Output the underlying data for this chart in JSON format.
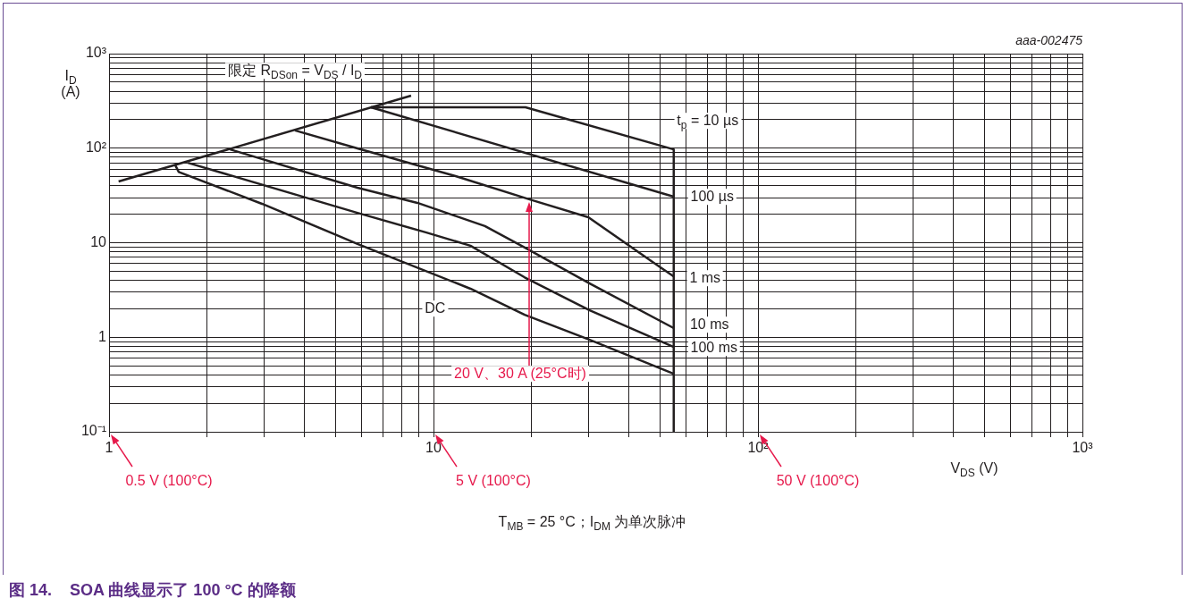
{
  "chart_data": {
    "type": "line",
    "title": "图 14.    SOA 曲线显示了 100 °C 的降额",
    "xlabel": "V$_{DS}$ (V)",
    "ylabel": "I$_{D}$ (A)",
    "annotations": [
      "aaa-002475",
      "限定 R$_{DSon}$ = V$_{DS}$ / I$_{D}$",
      "20 V、30 A (25°C时)",
      "0.5 V (100°C)",
      "5 V (100°C)",
      "50 V (100°C)",
      "T$_{MB}$ = 25 °C；I$_{DM}$ 为单次脉冲"
    ],
    "series": [
      {
        "color": "#231f20",
        "x": [
          1.07,
          8.53
        ],
        "values": [
          44.4,
          359
        ]
      },
      {
        "name": "t$_{p}$ = 10 µs",
        "color": "#231f20",
        "x": [
          6.41,
          19.2,
          55
        ],
        "values": [
          271,
          271,
          97
        ]
      },
      {
        "name": "100 µs",
        "color": "#231f20",
        "x": [
          6.41,
          55
        ],
        "values": [
          271,
          30.7
        ]
      },
      {
        "name": "1 ms",
        "color": "#231f20",
        "x": [
          3.74,
          5.83,
          11.7,
          19.8,
          30,
          48.2,
          55
        ],
        "values": [
          154,
          99.5,
          50.6,
          28.7,
          18.6,
          6.0,
          4.4
        ]
      },
      {
        "name": "10 ms",
        "color": "#231f20",
        "x": [
          2.36,
          5.83,
          8.92,
          14.4,
          19.1,
          30.3,
          55
        ],
        "values": [
          97,
          38.2,
          26.4,
          15.0,
          8.9,
          3.7,
          1.25
        ]
      },
      {
        "name": "100 ms",
        "color": "#231f20",
        "x": [
          1.75,
          5.83,
          9.51,
          13.0,
          19.1,
          30.3,
          55
        ],
        "values": [
          70,
          20.7,
          12.8,
          9.3,
          4.3,
          1.93,
          0.79
        ]
      },
      {
        "name": "DC",
        "color": "#231f20",
        "x": [
          1.6,
          1.64,
          2.96,
          5.04,
          5.83,
          13.0,
          19.1,
          30.3,
          55
        ],
        "values": [
          66,
          56,
          25.8,
          12.0,
          9.7,
          3.26,
          1.73,
          0.94,
          0.41
        ]
      },
      {
        "color": "#231f20",
        "x": [
          55,
          55
        ],
        "values": [
          97,
          0.1
        ]
      }
    ],
    "log": "xy",
    "xlim": [
      1,
      1000
    ],
    "ylim": [
      0.1,
      1000
    ],
    "xticks": [
      1,
      {
        "value": 2,
        "label": null
      },
      {
        "value": 3,
        "label": null
      },
      {
        "value": 4,
        "label": null
      },
      {
        "value": 5,
        "label": null
      },
      {
        "value": 6,
        "label": null
      },
      {
        "value": 7,
        "label": null
      },
      {
        "value": 8,
        "label": null
      },
      {
        "value": 9,
        "label": null
      },
      10,
      {
        "value": 20,
        "label": null
      },
      {
        "value": 30,
        "label": null
      },
      {
        "value": 40,
        "label": null
      },
      {
        "value": 50,
        "label": null
      },
      {
        "value": 60,
        "label": null
      },
      {
        "value": 70,
        "label": null
      },
      {
        "value": 80,
        "label": null
      },
      {
        "value": 90,
        "label": null
      },
      {
        "value": 100,
        "label": "10²"
      },
      {
        "value": 200,
        "label": null
      },
      {
        "value": 300,
        "label": null
      },
      {
        "value": 400,
        "label": null
      },
      {
        "value": 500,
        "label": null
      },
      {
        "value": 600,
        "label": null
      },
      {
        "value": 700,
        "label": null
      },
      {
        "value": 800,
        "label": null
      },
      {
        "value": 900,
        "label": null
      },
      {
        "value": 1000,
        "label": "10³"
      }
    ],
    "yticks": [
      {
        "value": 0.1,
        "label": "10⁻¹"
      },
      {
        "value": 0.2,
        "label": null
      },
      {
        "value": 0.3,
        "label": null
      },
      {
        "value": 0.4,
        "label": null
      },
      {
        "value": 0.5,
        "label": null
      },
      {
        "value": 0.6,
        "label": null
      },
      {
        "value": 0.7,
        "label": null
      },
      {
        "value": 0.8,
        "label": null
      },
      {
        "value": 0.9,
        "label": null
      },
      1,
      {
        "value": 2,
        "label": null
      },
      {
        "value": 3,
        "label": null
      },
      {
        "value": 4,
        "label": null
      },
      {
        "value": 5,
        "label": null
      },
      {
        "value": 6,
        "label": null
      },
      {
        "value": 7,
        "label": null
      },
      {
        "value": 8,
        "label": null
      },
      {
        "value": 9,
        "label": null
      },
      10,
      {
        "value": 20,
        "label": null
      },
      {
        "value": 30,
        "label": null
      },
      {
        "value": 40,
        "label": null
      },
      {
        "value": 50,
        "label": null
      },
      {
        "value": 60,
        "label": null
      },
      {
        "value": 70,
        "label": null
      },
      {
        "value": 80,
        "label": null
      },
      {
        "value": 90,
        "label": null
      },
      {
        "value": 100,
        "label": "10²"
      },
      {
        "value": 200,
        "label": null
      },
      {
        "value": 300,
        "label": null
      },
      {
        "value": 400,
        "label": null
      },
      {
        "value": 500,
        "label": null
      },
      {
        "value": 600,
        "label": null
      },
      {
        "value": 700,
        "label": null
      },
      {
        "value": 800,
        "label": null
      },
      {
        "value": 900,
        "label": null
      },
      {
        "value": 1000,
        "label": "10³"
      }
    ],
    "grid": true,
    "legend": false,
    "marker": "none",
    "line_style": "solid"
  }
}
